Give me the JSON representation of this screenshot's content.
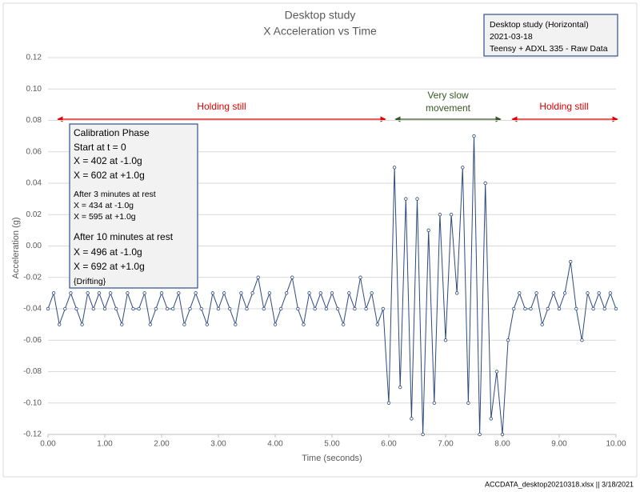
{
  "chart_data": {
    "type": "line",
    "title": [
      "Desktop study",
      "X Acceleration vs Time"
    ],
    "x_label": "Time (seconds)",
    "y_label": "Acceleration (g)",
    "series": [
      {
        "color": "#2e4a7d",
        "x": [
          0,
          0.1,
          0.2,
          0.3,
          0.4,
          0.5,
          0.6,
          0.7,
          0.8,
          0.9,
          1.0,
          1.1,
          1.2,
          1.3,
          1.4,
          1.5,
          1.6,
          1.7,
          1.8,
          1.9,
          2.0,
          2.1,
          2.2,
          2.3,
          2.4,
          2.5,
          2.6,
          2.7,
          2.8,
          2.9,
          3.0,
          3.1,
          3.2,
          3.3,
          3.4,
          3.5,
          3.6,
          3.7,
          3.8,
          3.9,
          4.0,
          4.1,
          4.2,
          4.3,
          4.4,
          4.5,
          4.6,
          4.7,
          4.8,
          4.9,
          5.0,
          5.1,
          5.2,
          5.3,
          5.4,
          5.5,
          5.6,
          5.7,
          5.8,
          5.9,
          6.0,
          6.1,
          6.2,
          6.3,
          6.4,
          6.5,
          6.6,
          6.7,
          6.8,
          6.9,
          7.0,
          7.1,
          7.2,
          7.3,
          7.4,
          7.5,
          7.6,
          7.7,
          7.8,
          7.9,
          8.0,
          8.1,
          8.2,
          8.3,
          8.4,
          8.5,
          8.6,
          8.7,
          8.8,
          8.9,
          9.0,
          9.1,
          9.2,
          9.3,
          9.4,
          9.5,
          9.6,
          9.7,
          9.8,
          9.9,
          10.0
        ],
        "values": [
          -0.04,
          -0.03,
          -0.05,
          -0.04,
          -0.03,
          -0.04,
          -0.05,
          -0.03,
          -0.04,
          -0.03,
          -0.04,
          -0.03,
          -0.04,
          -0.05,
          -0.03,
          -0.04,
          -0.04,
          -0.03,
          -0.05,
          -0.04,
          -0.03,
          -0.04,
          -0.04,
          -0.03,
          -0.05,
          -0.04,
          -0.03,
          -0.04,
          -0.05,
          -0.03,
          -0.04,
          -0.03,
          -0.04,
          -0.05,
          -0.03,
          -0.04,
          -0.03,
          -0.02,
          -0.04,
          -0.03,
          -0.05,
          -0.04,
          -0.03,
          -0.02,
          -0.04,
          -0.05,
          -0.03,
          -0.04,
          -0.03,
          -0.04,
          -0.03,
          -0.04,
          -0.05,
          -0.03,
          -0.04,
          -0.02,
          -0.04,
          -0.03,
          -0.05,
          -0.04,
          -0.1,
          0.05,
          -0.09,
          0.03,
          -0.11,
          0.03,
          -0.12,
          0.01,
          -0.1,
          0.02,
          -0.06,
          0.02,
          -0.03,
          0.05,
          -0.1,
          0.07,
          -0.12,
          0.04,
          -0.11,
          -0.08,
          -0.12,
          -0.06,
          -0.04,
          -0.03,
          -0.04,
          -0.04,
          -0.03,
          -0.05,
          -0.04,
          -0.03,
          -0.04,
          -0.03,
          -0.01,
          -0.04,
          -0.06,
          -0.03,
          -0.04,
          -0.03,
          -0.04,
          -0.03,
          -0.04
        ]
      }
    ],
    "xlim": [
      0,
      10
    ],
    "ylim": [
      -0.12,
      0.12
    ],
    "xticks": [
      {
        "value": 0,
        "label": "0.00"
      },
      {
        "value": 1,
        "label": "1.00"
      },
      {
        "value": 2,
        "label": "2.00"
      },
      {
        "value": 3,
        "label": "3.00"
      },
      {
        "value": 4,
        "label": "4.00"
      },
      {
        "value": 5,
        "label": "5.00"
      },
      {
        "value": 6,
        "label": "6.00"
      },
      {
        "value": 7,
        "label": "7.00"
      },
      {
        "value": 8,
        "label": "8.00"
      },
      {
        "value": 9,
        "label": "9.00"
      },
      {
        "value": 10,
        "label": "10.00"
      }
    ],
    "yticks": [
      {
        "value": -0.12,
        "label": "-0.12"
      },
      {
        "value": -0.1,
        "label": "-0.10"
      },
      {
        "value": -0.08,
        "label": "-0.08"
      },
      {
        "value": -0.06,
        "label": "-0.06"
      },
      {
        "value": -0.04,
        "label": "-0.04"
      },
      {
        "value": -0.02,
        "label": "-0.02"
      },
      {
        "value": 0,
        "label": "0.00"
      },
      {
        "value": 0.02,
        "label": "0.02"
      },
      {
        "value": 0.04,
        "label": "0.04"
      },
      {
        "value": 0.06,
        "label": "0.06"
      },
      {
        "value": 0.08,
        "label": "0.08"
      },
      {
        "value": 0.1,
        "label": "0.10"
      },
      {
        "value": 0.12,
        "label": "0.12"
      }
    ],
    "grid": true,
    "annotations": [
      {
        "lines": [
          "Holding still"
        ],
        "color": "#e00000"
      },
      {
        "lines": [
          "Very slow",
          "movement"
        ],
        "color": "#375623"
      },
      {
        "lines": [
          "Holding still"
        ],
        "color": "#e00000"
      }
    ],
    "info_box": [
      "Desktop study (Horizontal)",
      "2021-03-18",
      "Teensy + ADXL 335 - Raw Data"
    ],
    "calibration_box": [
      "Calibration Phase",
      "Start at t = 0",
      "X = 402 at -1.0g",
      "X = 602 at +1.0g",
      "After 3 minutes at rest",
      "X = 434 at -1.0g",
      "X = 595 at +1.0g",
      "After 10 minutes at rest",
      "X = 496 at -1.0g",
      "X = 692 at +1.0g",
      "{Drifting}"
    ],
    "footer": "ACCDATA_desktop20210318.xlsx || 3/18/2021"
  }
}
